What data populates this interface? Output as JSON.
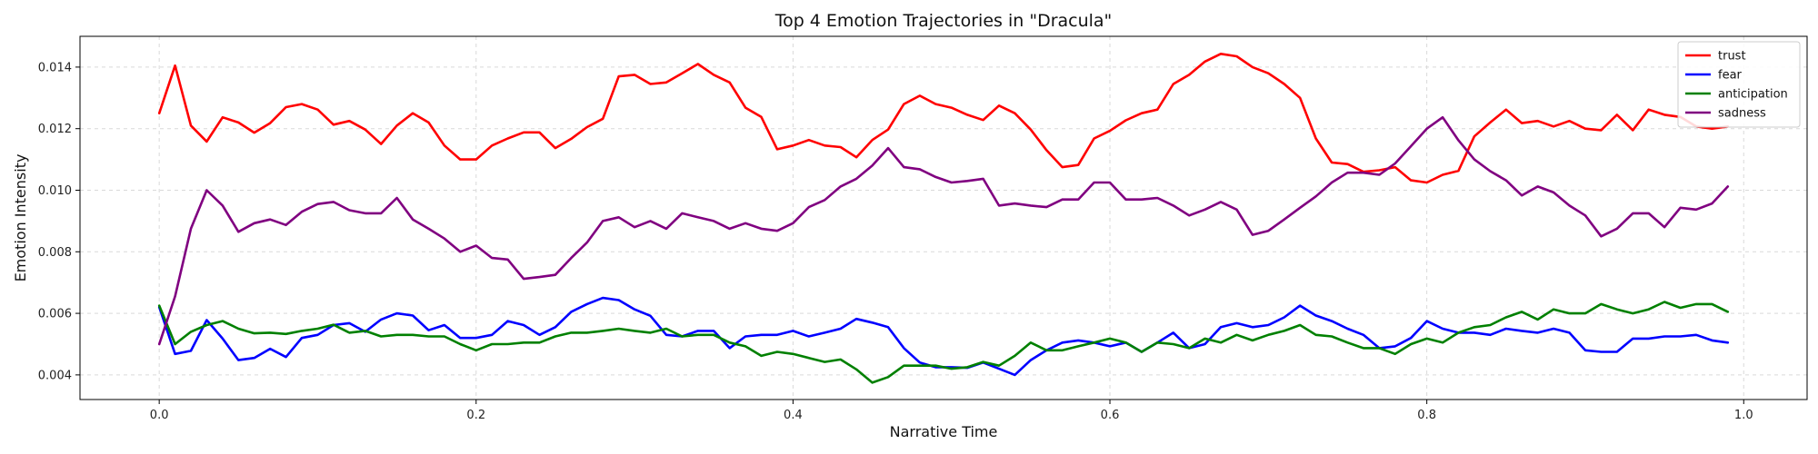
{
  "chart_data": {
    "type": "line",
    "title": "Top 4 Emotion Trajectories in \"Dracula\"",
    "xlabel": "Narrative Time",
    "ylabel": "Emotion Intensity",
    "xlim": [
      -0.05,
      1.04
    ],
    "ylim": [
      0.0032,
      0.015
    ],
    "xticks": [
      "0.0",
      "0.2",
      "0.4",
      "0.6",
      "0.8",
      "1.0"
    ],
    "yticks": [
      "0.004",
      "0.006",
      "0.008",
      "0.010",
      "0.012",
      "0.014"
    ],
    "grid": true,
    "legend_position": "top-right",
    "x": [
      0.0,
      0.01,
      0.02,
      0.03,
      0.04,
      0.05,
      0.06,
      0.07,
      0.08,
      0.09,
      0.1,
      0.11,
      0.12,
      0.13,
      0.14,
      0.15,
      0.16,
      0.17,
      0.18,
      0.19,
      0.2,
      0.21,
      0.22,
      0.23,
      0.24,
      0.25,
      0.26,
      0.27,
      0.28,
      0.29,
      0.3,
      0.31,
      0.32,
      0.33,
      0.34,
      0.35,
      0.36,
      0.37,
      0.38,
      0.39,
      0.4,
      0.41,
      0.42,
      0.43,
      0.44,
      0.45,
      0.46,
      0.47,
      0.48,
      0.49,
      0.5,
      0.51,
      0.52,
      0.53,
      0.54,
      0.55,
      0.56,
      0.57,
      0.58,
      0.59,
      0.6,
      0.61,
      0.62,
      0.63,
      0.64,
      0.65,
      0.66,
      0.67,
      0.68,
      0.69,
      0.7,
      0.71,
      0.72,
      0.73,
      0.74,
      0.75,
      0.76,
      0.77,
      0.78,
      0.79,
      0.8,
      0.81,
      0.82,
      0.83,
      0.84,
      0.85,
      0.86,
      0.87,
      0.88,
      0.89,
      0.9,
      0.91,
      0.92,
      0.93,
      0.94,
      0.95,
      0.96,
      0.97,
      0.98,
      0.99
    ],
    "series": [
      {
        "name": "trust",
        "color": "#ff0000",
        "values": [
          0.0125,
          0.01405,
          0.0121,
          0.01158,
          0.01237,
          0.0122,
          0.01187,
          0.01218,
          0.0127,
          0.0128,
          0.01262,
          0.01213,
          0.01225,
          0.01197,
          0.0115,
          0.0121,
          0.0125,
          0.0122,
          0.01145,
          0.011,
          0.011,
          0.01145,
          0.01168,
          0.01188,
          0.01188,
          0.01137,
          0.01167,
          0.01205,
          0.01232,
          0.0137,
          0.01375,
          0.01345,
          0.0135,
          0.0138,
          0.0141,
          0.01375,
          0.0135,
          0.01268,
          0.01238,
          0.01133,
          0.01145,
          0.01163,
          0.01145,
          0.0114,
          0.01107,
          0.01163,
          0.01197,
          0.0128,
          0.01307,
          0.0128,
          0.01268,
          0.01245,
          0.01228,
          0.01275,
          0.0125,
          0.01197,
          0.0113,
          0.01075,
          0.01082,
          0.01168,
          0.01193,
          0.01227,
          0.0125,
          0.01262,
          0.01345,
          0.01375,
          0.01418,
          0.01443,
          0.01435,
          0.014,
          0.0138,
          0.01345,
          0.013,
          0.01168,
          0.0109,
          0.01085,
          0.0106,
          0.01065,
          0.01075,
          0.01032,
          0.01025,
          0.0105,
          0.01063,
          0.01175,
          0.0122,
          0.01262,
          0.01218,
          0.01225,
          0.01207,
          0.01225,
          0.012,
          0.01195,
          0.01245,
          0.01195,
          0.01262,
          0.01245,
          0.01238,
          0.01207,
          0.012,
          0.01207
        ]
      },
      {
        "name": "fear",
        "color": "#0000ff",
        "values": [
          0.0062,
          0.00468,
          0.00478,
          0.00578,
          0.00518,
          0.00448,
          0.00455,
          0.00485,
          0.00458,
          0.0052,
          0.0053,
          0.00562,
          0.00568,
          0.0054,
          0.0058,
          0.006,
          0.00593,
          0.00545,
          0.00562,
          0.0052,
          0.0052,
          0.0053,
          0.00575,
          0.00562,
          0.0053,
          0.00555,
          0.00605,
          0.0063,
          0.0065,
          0.00643,
          0.00613,
          0.00592,
          0.0053,
          0.00525,
          0.00543,
          0.00543,
          0.00487,
          0.00525,
          0.0053,
          0.0053,
          0.00543,
          0.00525,
          0.00537,
          0.0055,
          0.00582,
          0.0057,
          0.00555,
          0.00487,
          0.0044,
          0.00425,
          0.00425,
          0.00423,
          0.0044,
          0.0042,
          0.004,
          0.00448,
          0.0048,
          0.00505,
          0.00512,
          0.00505,
          0.00493,
          0.00505,
          0.00475,
          0.00505,
          0.00537,
          0.00487,
          0.005,
          0.00555,
          0.00568,
          0.00555,
          0.00562,
          0.00587,
          0.00625,
          0.00593,
          0.00575,
          0.0055,
          0.0053,
          0.00487,
          0.00493,
          0.0052,
          0.00575,
          0.0055,
          0.00537,
          0.00537,
          0.0053,
          0.0055,
          0.00543,
          0.00537,
          0.0055,
          0.00537,
          0.0048,
          0.00475,
          0.00475,
          0.00518,
          0.00518,
          0.00525,
          0.00525,
          0.0053,
          0.00512,
          0.00505
        ]
      },
      {
        "name": "anticipation",
        "color": "#008000",
        "values": [
          0.00625,
          0.005,
          0.0054,
          0.00562,
          0.00575,
          0.0055,
          0.00535,
          0.00537,
          0.00533,
          0.00543,
          0.0055,
          0.00563,
          0.00537,
          0.00543,
          0.00525,
          0.0053,
          0.0053,
          0.00525,
          0.00525,
          0.005,
          0.0048,
          0.005,
          0.005,
          0.00505,
          0.00505,
          0.00525,
          0.00537,
          0.00537,
          0.00543,
          0.0055,
          0.00543,
          0.00537,
          0.0055,
          0.00525,
          0.0053,
          0.0053,
          0.00505,
          0.00493,
          0.00462,
          0.00475,
          0.00468,
          0.00455,
          0.00442,
          0.0045,
          0.00418,
          0.00375,
          0.00393,
          0.0043,
          0.0043,
          0.0043,
          0.0042,
          0.00425,
          0.00442,
          0.0043,
          0.00462,
          0.00505,
          0.0048,
          0.0048,
          0.00493,
          0.00505,
          0.00518,
          0.00505,
          0.00475,
          0.00505,
          0.005,
          0.00487,
          0.00518,
          0.00505,
          0.0053,
          0.00512,
          0.0053,
          0.00543,
          0.00562,
          0.0053,
          0.00525,
          0.00505,
          0.00487,
          0.00487,
          0.00468,
          0.005,
          0.00518,
          0.00505,
          0.00537,
          0.00555,
          0.00562,
          0.00587,
          0.00605,
          0.0058,
          0.00613,
          0.006,
          0.006,
          0.0063,
          0.00613,
          0.006,
          0.00613,
          0.00637,
          0.00618,
          0.0063,
          0.0063,
          0.00605
        ]
      },
      {
        "name": "sadness",
        "color": "#800080",
        "values": [
          0.005,
          0.00655,
          0.00875,
          0.01,
          0.0095,
          0.00865,
          0.00893,
          0.00905,
          0.00887,
          0.0093,
          0.00955,
          0.00962,
          0.00935,
          0.00925,
          0.00925,
          0.00975,
          0.00905,
          0.00875,
          0.00843,
          0.008,
          0.0082,
          0.0078,
          0.00775,
          0.00712,
          0.00718,
          0.00725,
          0.0078,
          0.0083,
          0.009,
          0.00912,
          0.0088,
          0.009,
          0.00875,
          0.00925,
          0.00912,
          0.009,
          0.00875,
          0.00893,
          0.00875,
          0.00868,
          0.00893,
          0.00945,
          0.00968,
          0.01012,
          0.01037,
          0.0108,
          0.01137,
          0.01075,
          0.01068,
          0.01043,
          0.01025,
          0.0103,
          0.01037,
          0.0095,
          0.00957,
          0.0095,
          0.00945,
          0.0097,
          0.0097,
          0.01025,
          0.01025,
          0.0097,
          0.0097,
          0.00975,
          0.0095,
          0.00918,
          0.00937,
          0.00962,
          0.00937,
          0.00855,
          0.00868,
          0.00905,
          0.00943,
          0.0098,
          0.01025,
          0.01057,
          0.01057,
          0.0105,
          0.01087,
          0.01143,
          0.012,
          0.01237,
          0.01162,
          0.011,
          0.01062,
          0.01032,
          0.00983,
          0.01012,
          0.00993,
          0.0095,
          0.00918,
          0.0085,
          0.00875,
          0.00925,
          0.00925,
          0.0088,
          0.00943,
          0.00937,
          0.00957,
          0.01012
        ]
      }
    ]
  }
}
